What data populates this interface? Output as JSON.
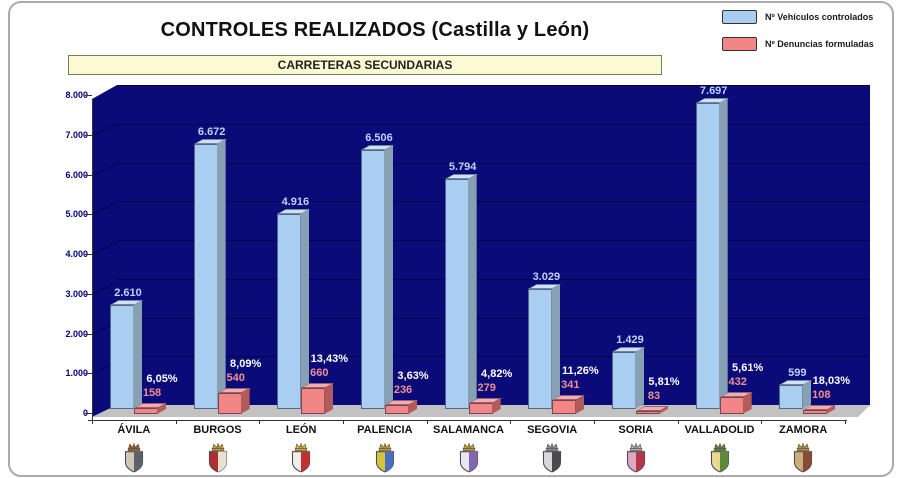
{
  "header": {
    "title": "CONTROLES REALIZADOS (Castilla y León)",
    "subtitle": "CARRETERAS SECUNDARIAS"
  },
  "legend": {
    "position": "top-right",
    "items": [
      {
        "label": "Nº Vehículos controlados",
        "color": "#a9cef1"
      },
      {
        "label": "Nº Denuncias formuladas",
        "color": "#f28585"
      }
    ]
  },
  "chart_data": {
    "type": "bar",
    "projection": "3d",
    "title": "CONTROLES REALIZADOS (Castilla y León)",
    "subtitle": "CARRETERAS SECUNDARIAS",
    "categories": [
      "ÁVILA",
      "BURGOS",
      "LEÓN",
      "PALENCIA",
      "SALAMANCA",
      "SEGOVIA",
      "SORIA",
      "VALLADOLID",
      "ZAMORA"
    ],
    "series": [
      {
        "name": "Nº Vehículos controlados",
        "color": "#a9cef1",
        "top_color": "#cbe2f7",
        "side_color": "#87a0b4",
        "label_color": "#bdd2f8",
        "values": [
          2610,
          6672,
          4916,
          6506,
          5794,
          3029,
          1429,
          7697,
          599
        ],
        "labels": [
          "2.610",
          "6.672",
          "4.916",
          "6.506",
          "5.794",
          "3.029",
          "1.429",
          "7.697",
          "599"
        ]
      },
      {
        "name": "Nº Denuncias formuladas",
        "color": "#f28585",
        "top_color": "#f7abab",
        "side_color": "#b35a5a",
        "label_color": "#f19090",
        "values": [
          158,
          540,
          660,
          236,
          279,
          341,
          83,
          432,
          108
        ],
        "labels": [
          "158",
          "540",
          "660",
          "236",
          "279",
          "341",
          "83",
          "432",
          "108"
        ]
      }
    ],
    "percent_labels": [
      "6,05%",
      "8,09%",
      "13,43%",
      "3,63%",
      "4,82%",
      "11,26%",
      "5,81%",
      "5,61%",
      "18,03%"
    ],
    "percent_label_color": "#ffffff",
    "ylim": [
      0,
      8000
    ],
    "y_tick_step": 1000,
    "y_tick_labels": [
      "0",
      "1.000",
      "2.000",
      "3.000",
      "4.000",
      "5.000",
      "6.000",
      "7.000",
      "8.000"
    ],
    "grid": true,
    "legend_position": "top-right",
    "wall_color": "#0a0a78",
    "floor_color": "#c2c2c2",
    "axis_label_color": "#00007d"
  },
  "shields": [
    {
      "province": "ÁVILA",
      "colors": [
        "#cfc6b4",
        "#5f5f6e",
        "#a05a28"
      ]
    },
    {
      "province": "BURGOS",
      "colors": [
        "#b03030",
        "#e8e0d0",
        "#caa02a"
      ]
    },
    {
      "province": "LEÓN",
      "colors": [
        "#f2efe6",
        "#c43030",
        "#d8b030"
      ]
    },
    {
      "province": "PALENCIA",
      "colors": [
        "#d8c43a",
        "#4a6ec0",
        "#caa02a"
      ]
    },
    {
      "province": "SALAMANCA",
      "colors": [
        "#e8e6f2",
        "#8068b0",
        "#caa02a"
      ]
    },
    {
      "province": "SEGOVIA",
      "colors": [
        "#d8d8d8",
        "#4a4a50",
        "#909098"
      ]
    },
    {
      "province": "SORIA",
      "colors": [
        "#e0a8c0",
        "#b03848",
        "#b0b0c0"
      ]
    },
    {
      "province": "VALLADOLID",
      "colors": [
        "#e8d890",
        "#5a8a3a",
        "#5a8a3a"
      ]
    },
    {
      "province": "ZAMORA",
      "colors": [
        "#c8b078",
        "#8a4a3a",
        "#b89530"
      ]
    }
  ]
}
